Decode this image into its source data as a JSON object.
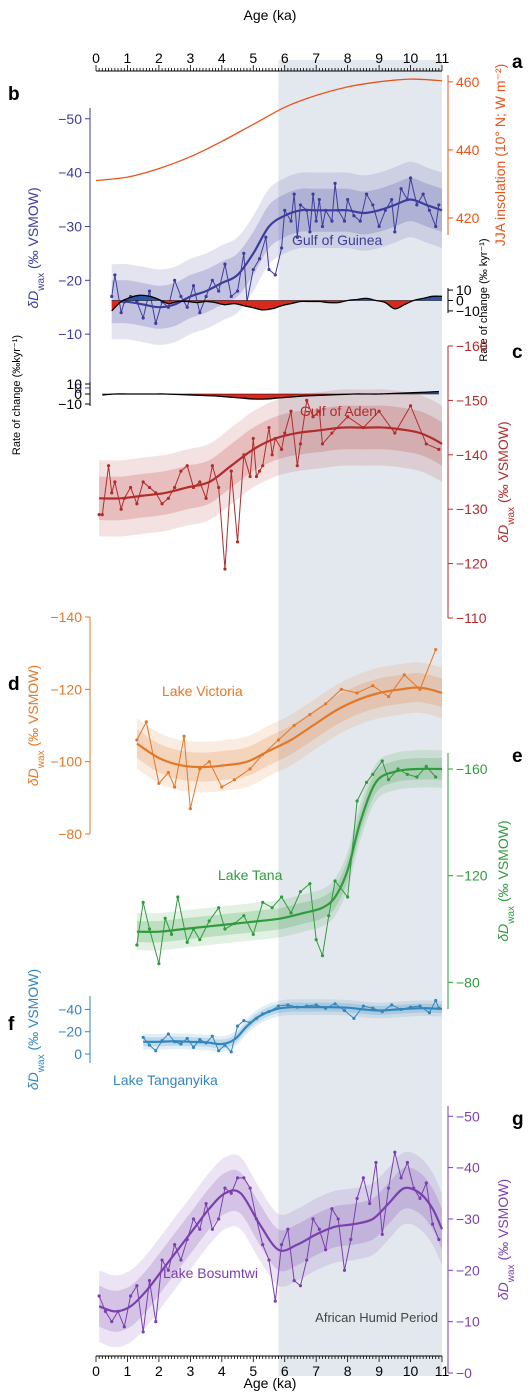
{
  "chart_data": {
    "type": "line",
    "x_axis": {
      "label": "Age (ka)",
      "range": [
        0,
        11
      ],
      "ticks": [
        "0",
        "1",
        "2",
        "3",
        "4",
        "5",
        "6",
        "7",
        "8",
        "9",
        "10",
        "11"
      ]
    },
    "shaded_interval": {
      "from": 5.8,
      "to": 11,
      "label": "African Humid Period",
      "color": "#e3e8ee"
    },
    "colors": {
      "insolation": "#e8541a",
      "guinea": "#3d3d9e",
      "aden": "#b22c2c",
      "victoria": "#e27828",
      "tana": "#2f9c3c",
      "tanganyika": "#3386bd",
      "bosumtwi": "#7b3fb0",
      "rate_pos": "#2a55a8",
      "rate_neg": "#d9281e"
    },
    "panels": {
      "a": {
        "letter": "a",
        "label": "JJA insolation (10° N; W m⁻²)",
        "ticks": [
          "420",
          "440",
          "460"
        ],
        "ylim": [
          415,
          462
        ],
        "x": [
          0,
          1,
          2,
          3,
          4,
          5,
          6,
          7,
          8,
          9,
          10,
          11
        ],
        "y": [
          431,
          432,
          434.5,
          438,
          442.5,
          447.5,
          452.5,
          456,
          458.5,
          460,
          460.8,
          460.3
        ]
      },
      "b": {
        "letter": "b",
        "name": "Gulf of Guinea",
        "label_main": "δD",
        "label_sub": "wax",
        "label_unit": " (‰ VSMOW)",
        "ticks": [
          "−50",
          "−40",
          "−30",
          "−20",
          "−10",
          "0"
        ],
        "ylim": [
          0,
          -52
        ],
        "x": [
          0.5,
          0.6,
          0.8,
          0.9,
          1.1,
          1.3,
          1.5,
          1.7,
          1.9,
          2.1,
          2.3,
          2.5,
          2.7,
          2.9,
          3.1,
          3.3,
          3.5,
          3.7,
          3.9,
          4.1,
          4.3,
          4.5,
          4.7,
          4.8,
          5.0,
          5.2,
          5.4,
          5.5,
          5.7,
          5.9,
          6.0,
          6.2,
          6.3,
          6.4,
          6.5,
          6.7,
          6.8,
          6.9,
          7.0,
          7.1,
          7.2,
          7.3,
          7.5,
          7.6,
          7.7,
          7.9,
          8.0,
          8.2,
          8.4,
          8.6,
          8.8,
          9.0,
          9.2,
          9.4,
          9.5,
          9.7,
          9.9,
          10.0,
          10.2,
          10.4,
          10.6,
          10.8,
          10.9
        ],
        "y": [
          -17,
          -21,
          -14,
          -16,
          -17,
          -16,
          -13,
          -18,
          -12,
          -16,
          -15,
          -20,
          -17,
          -15,
          -19,
          -14,
          -17,
          -20,
          -18,
          -23,
          -17,
          -18,
          -25,
          -16,
          -22,
          -24,
          -28,
          -22,
          -21,
          -26,
          -33,
          -31,
          -36,
          -28,
          -34,
          -33,
          -29,
          -36,
          -31,
          -35,
          -30,
          -33,
          -31,
          -38,
          -33,
          -31,
          -35,
          -32,
          -31,
          -36,
          -34,
          -30,
          -33,
          -35,
          -29,
          -37,
          -35,
          -39,
          -34,
          -36,
          -33,
          -30,
          -34
        ],
        "trend": [
          -16,
          -16,
          -15.5,
          -15,
          -15.5,
          -17,
          -18,
          -19.5,
          -21,
          -25,
          -30,
          -32,
          -33,
          -33,
          -33,
          -33,
          -32.5,
          -33,
          -34,
          -35,
          -34,
          -33
        ],
        "trend_x": [
          0.5,
          1,
          1.5,
          2,
          2.5,
          3,
          3.5,
          4,
          4.5,
          5,
          5.5,
          6,
          6.5,
          7,
          7.5,
          8,
          8.5,
          9,
          9.5,
          10,
          10.5,
          11
        ]
      },
      "b_rate": {
        "label": "Rate of change (‰ kyr⁻¹)",
        "ticks": [
          "10",
          "0",
          "−10"
        ],
        "ylim": [
          -12,
          12
        ],
        "x": [
          0.5,
          0.8,
          1.1,
          1.4,
          1.7,
          2.0,
          2.3,
          2.6,
          2.9,
          3.2,
          3.5,
          3.8,
          4.1,
          4.4,
          4.7,
          5.0,
          5.3,
          5.6,
          5.9,
          6.2,
          6.5,
          6.8,
          7.1,
          7.4,
          7.7,
          8.0,
          8.3,
          8.6,
          8.9,
          9.2,
          9.5,
          9.8,
          10.1,
          10.4,
          10.7,
          11.0
        ],
        "y": [
          -10,
          -1,
          3,
          5,
          4,
          1,
          -3,
          -1,
          -1,
          -2,
          -1,
          -2,
          -4,
          -3,
          -5,
          -7,
          -9,
          -8,
          -5,
          -3,
          -1,
          -1,
          -1,
          -2,
          -2,
          0,
          1,
          2,
          0,
          -2,
          -8,
          -4,
          0,
          2,
          4,
          4
        ]
      },
      "c": {
        "letter": "c",
        "name": "Gulf of Aden",
        "label_main": "δD",
        "label_sub": "wax",
        "label_unit": " (‰ VSMOW)",
        "ticks": [
          "−160",
          "−150",
          "−140",
          "−130",
          "−120",
          "−110"
        ],
        "ylim": [
          -110,
          -160
        ],
        "x": [
          0.1,
          0.2,
          0.4,
          0.5,
          0.6,
          0.8,
          0.9,
          1.1,
          1.3,
          1.5,
          1.7,
          1.9,
          2.1,
          2.3,
          2.5,
          2.7,
          2.9,
          3.1,
          3.3,
          3.5,
          3.7,
          3.9,
          4.1,
          4.3,
          4.5,
          4.7,
          4.9,
          5.0,
          5.1,
          5.2,
          5.3,
          5.5,
          5.6,
          5.7,
          5.9,
          6.0,
          6.2,
          6.4,
          6.5,
          6.7,
          6.9,
          7.1,
          7.2,
          7.5,
          8.0,
          8.5,
          9.0,
          9.5,
          10.0,
          10.5,
          10.9
        ],
        "y": [
          -129,
          -129,
          -138,
          -133,
          -135,
          -130,
          -132,
          -134,
          -131,
          -135,
          -134,
          -133,
          -131,
          -132,
          -134,
          -137,
          -138,
          -134,
          -135,
          -132,
          -138,
          -134,
          -119,
          -137,
          -124,
          -140,
          -136,
          -143,
          -136,
          -137,
          -138,
          -145,
          -140,
          -143,
          -141,
          -144,
          -148,
          -138,
          -142,
          -150,
          -147,
          -148,
          -142,
          -144,
          -147,
          -145,
          -148,
          -144,
          -149,
          -142,
          -141
        ],
        "trend": [
          -132,
          -132,
          -132.5,
          -133,
          -134,
          -135,
          -138,
          -141,
          -143,
          -144,
          -144.5,
          -145,
          -145,
          -145,
          -144.5,
          -144,
          -143,
          -142
        ],
        "trend_x": [
          0.1,
          0.8,
          1.5,
          2.2,
          2.9,
          3.6,
          4.3,
          5.0,
          5.7,
          6.4,
          7.1,
          7.8,
          8.5,
          9.2,
          9.9,
          10.3,
          10.7,
          11.0
        ]
      },
      "c_rate": {
        "label": "Rate of change (‰kyr⁻¹)",
        "ticks": [
          "10",
          "0",
          "−10"
        ],
        "ylim": [
          -12,
          12
        ],
        "x": [
          0.2,
          0.6,
          1.0,
          1.4,
          1.8,
          2.2,
          2.6,
          3.0,
          3.4,
          3.8,
          4.2,
          4.6,
          5.0,
          5.4,
          5.8,
          6.2,
          6.6,
          7.0,
          7.4,
          7.8,
          8.2,
          8.6,
          9.0,
          9.4,
          9.8,
          10.2,
          10.6,
          10.9
        ],
        "y": [
          -1,
          0,
          0,
          0,
          0,
          0,
          -0.5,
          -1,
          -1.5,
          -2,
          -3,
          -4,
          -5,
          -5,
          -4,
          -3,
          -2,
          -1.5,
          -1,
          -0.5,
          0,
          0,
          0,
          0.5,
          1,
          1.5,
          2,
          2.5
        ]
      },
      "d": {
        "letter": "d",
        "name": "Lake Victoria",
        "label_main": "δD",
        "label_sub": "wax",
        "label_unit": " (‰ VSMOW)",
        "ticks": [
          "−140",
          "−120",
          "−100",
          "−80"
        ],
        "ylim": [
          -80,
          -140
        ],
        "x": [
          1.3,
          1.6,
          2.0,
          2.3,
          2.5,
          2.8,
          3.0,
          3.3,
          3.6,
          4.0,
          4.4,
          4.9,
          5.3,
          5.8,
          6.3,
          6.8,
          7.3,
          7.8,
          8.3,
          8.8,
          9.3,
          9.8,
          10.3,
          10.8
        ],
        "y": [
          -106,
          -111,
          -94,
          -97,
          -93,
          -107,
          -87,
          -98,
          -100,
          -93,
          -95,
          -98,
          -102,
          -106,
          -110,
          -113,
          -116,
          -120,
          -119,
          -121,
          -118,
          -124,
          -120,
          -131
        ],
        "trend": [
          -105,
          -101,
          -99,
          -98.5,
          -99,
          -100,
          -103,
          -106,
          -110,
          -114,
          -117,
          -119,
          -120,
          -120.5,
          -120,
          -119
        ],
        "trend_x": [
          1.3,
          2.0,
          2.7,
          3.4,
          4.1,
          4.8,
          5.5,
          6.2,
          6.9,
          7.6,
          8.3,
          9.0,
          9.7,
          10.2,
          10.6,
          11.0
        ]
      },
      "e": {
        "letter": "e",
        "name": "Lake Tana",
        "label_main": "δD",
        "label_sub": "wax",
        "label_unit": " (‰ VSMOW)",
        "ticks": [
          "−160",
          "−120",
          "−80"
        ],
        "ylim": [
          -70,
          -166
        ],
        "x": [
          1.3,
          1.5,
          1.7,
          2.0,
          2.2,
          2.4,
          2.6,
          2.9,
          3.1,
          3.3,
          3.6,
          3.9,
          4.1,
          4.4,
          4.7,
          5.0,
          5.3,
          5.6,
          5.9,
          6.2,
          6.5,
          6.8,
          7.0,
          7.2,
          7.4,
          7.6,
          8.0,
          8.3,
          8.6,
          8.8,
          9.1,
          9.3,
          9.6,
          9.9,
          10.2,
          10.5,
          10.8
        ],
        "y": [
          -94,
          -110,
          -100,
          -87,
          -104,
          -98,
          -112,
          -95,
          -100,
          -96,
          -103,
          -108,
          -100,
          -102,
          -105,
          -98,
          -110,
          -108,
          -112,
          -106,
          -114,
          -117,
          -96,
          -90,
          -105,
          -118,
          -112,
          -148,
          -155,
          -158,
          -163,
          -156,
          -160,
          -158,
          -157,
          -161,
          -157
        ],
        "trend": [
          -99,
          -99,
          -100,
          -101,
          -102,
          -103,
          -104,
          -106,
          -108,
          -112,
          -122,
          -140,
          -155,
          -159,
          -160,
          -160
        ],
        "trend_x": [
          1.3,
          2.0,
          2.8,
          3.6,
          4.4,
          5.2,
          5.9,
          6.6,
          7.2,
          7.6,
          8.0,
          8.4,
          8.9,
          9.5,
          10.2,
          11.0
        ]
      },
      "f": {
        "letter": "f",
        "name": "Lake Tanganyika",
        "label_main": "δD",
        "label_sub": "wax",
        "label_unit": " (‰ VSMOW)",
        "ticks": [
          "−40",
          "−20",
          "0"
        ],
        "ylim": [
          8,
          -52
        ],
        "x": [
          1.5,
          1.7,
          1.9,
          2.1,
          2.3,
          2.5,
          2.7,
          2.9,
          3.1,
          3.3,
          3.5,
          3.7,
          3.9,
          4.1,
          4.3,
          4.5,
          4.7,
          4.9,
          5.1,
          5.3,
          5.5,
          5.8,
          6.1,
          6.4,
          6.7,
          7.0,
          7.3,
          7.6,
          7.9,
          8.2,
          8.5,
          8.8,
          9.1,
          9.4,
          9.7,
          10.0,
          10.3,
          10.6,
          10.8,
          10.9
        ],
        "y": [
          -15,
          -8,
          -3,
          -12,
          -18,
          -11,
          -9,
          -14,
          -6,
          -13,
          -10,
          -16,
          -3,
          -8,
          -2,
          -25,
          -30,
          -28,
          -32,
          -36,
          -38,
          -43,
          -44,
          -42,
          -43,
          -44,
          -41,
          -45,
          -39,
          -32,
          -43,
          -41,
          -38,
          -44,
          -40,
          -42,
          -43,
          -37,
          -48,
          -41
        ],
        "trend": [
          -11,
          -11,
          -11.5,
          -11,
          -10.5,
          -9,
          -13,
          -25,
          -34,
          -40,
          -42,
          -42,
          -42,
          -41.5,
          -40,
          -39,
          -40,
          -41,
          -41,
          -40.5
        ],
        "trend_x": [
          1.5,
          2.0,
          2.5,
          3.0,
          3.5,
          4.0,
          4.4,
          4.8,
          5.2,
          5.7,
          6.2,
          6.8,
          7.4,
          8.0,
          8.5,
          9.0,
          9.6,
          10.2,
          10.6,
          11.0
        ]
      },
      "g": {
        "letter": "g",
        "name": "Lake Bosumtwi",
        "label_main": "δD",
        "label_sub": "wax",
        "label_unit": " (‰ VSMOW)",
        "ticks": [
          "−50",
          "−40",
          "−30",
          "−20",
          "−10",
          "−0"
        ],
        "ylim": [
          0,
          -52
        ],
        "x": [
          0.1,
          0.3,
          0.5,
          0.7,
          0.9,
          1.1,
          1.3,
          1.5,
          1.7,
          1.9,
          2.1,
          2.3,
          2.5,
          2.7,
          2.9,
          3.1,
          3.3,
          3.5,
          3.7,
          3.9,
          4.1,
          4.3,
          4.5,
          4.7,
          4.9,
          5.1,
          5.3,
          5.5,
          5.7,
          5.9,
          6.1,
          6.3,
          6.5,
          6.7,
          6.9,
          7.1,
          7.3,
          7.5,
          7.7,
          7.9,
          8.1,
          8.3,
          8.5,
          8.7,
          8.9,
          9.1,
          9.3,
          9.5,
          9.7,
          9.9,
          10.1,
          10.3,
          10.5,
          10.7,
          10.9
        ],
        "y": [
          -15,
          -12,
          -10,
          -12,
          -9,
          -15,
          -17,
          -8,
          -18,
          -10,
          -22,
          -20,
          -25,
          -22,
          -26,
          -30,
          -28,
          -33,
          -28,
          -30,
          -36,
          -35,
          -38,
          -38,
          -36,
          -30,
          -25,
          -22,
          -14,
          -25,
          -28,
          -18,
          -17,
          -22,
          -30,
          -28,
          -24,
          -32,
          -30,
          -20,
          -26,
          -34,
          -38,
          -33,
          -41,
          -27,
          -36,
          -43,
          -38,
          -41,
          -36,
          -34,
          -37,
          -29,
          -26
        ],
        "trend": [
          -13,
          -12,
          -13,
          -16,
          -20,
          -24,
          -28,
          -32,
          -35,
          -35,
          -29,
          -24,
          -25,
          -27,
          -28.5,
          -29,
          -30,
          -33,
          -36,
          -35,
          -32,
          -28
        ],
        "trend_x": [
          0.1,
          0.6,
          1.1,
          1.6,
          2.1,
          2.6,
          3.1,
          3.6,
          4.1,
          4.6,
          5.2,
          5.8,
          6.4,
          7.0,
          7.6,
          8.2,
          8.8,
          9.3,
          9.8,
          10.3,
          10.7,
          11.0
        ]
      }
    }
  }
}
